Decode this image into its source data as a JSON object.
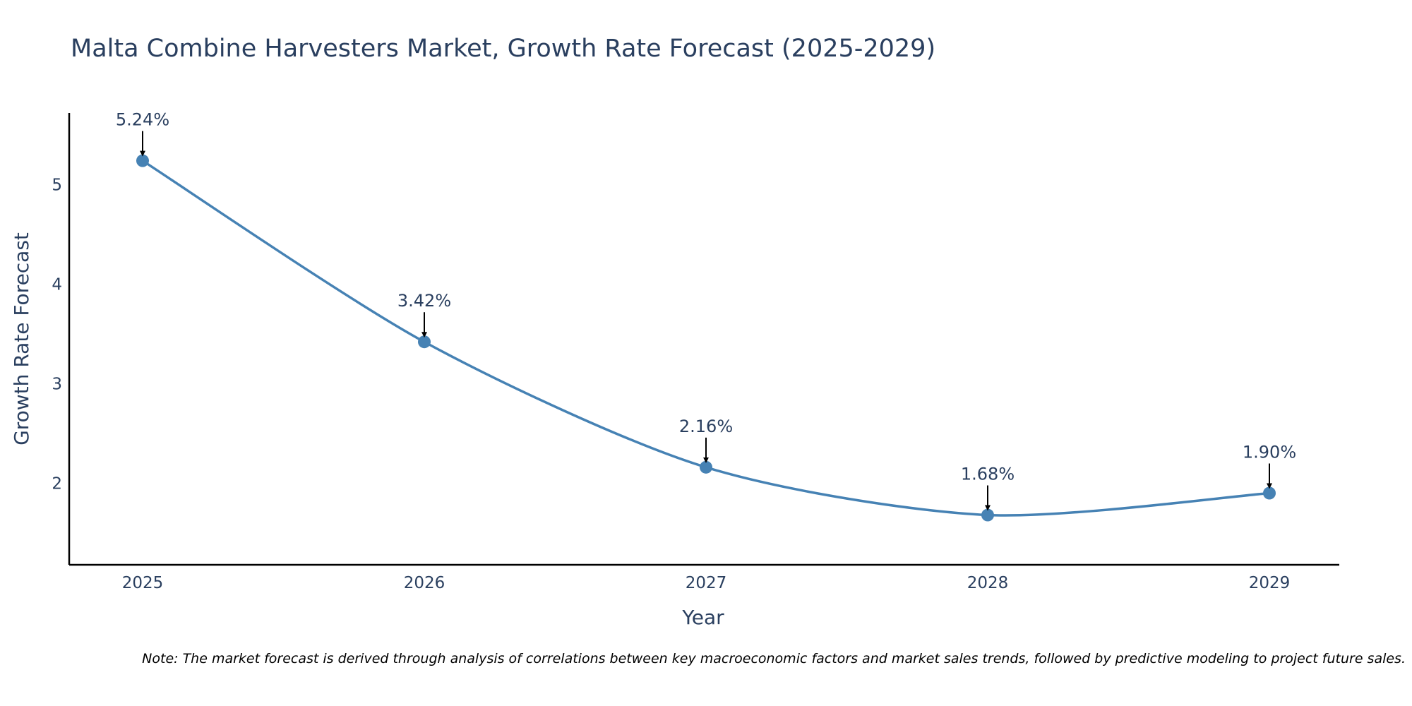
{
  "chart_data": {
    "type": "line",
    "title": "Malta Combine Harvesters Market, Growth Rate Forecast (2025-2029)",
    "xlabel": "Year",
    "ylabel": "Growth Rate Forecast",
    "categories": [
      "2025",
      "2026",
      "2027",
      "2028",
      "2029"
    ],
    "values": [
      5.24,
      3.42,
      2.16,
      1.68,
      1.9
    ],
    "labels": [
      "5.24%",
      "3.42%",
      "2.16%",
      "1.68%",
      "1.90%"
    ],
    "yticks": [
      2,
      3,
      4,
      5
    ],
    "ylim": [
      1.18,
      5.72
    ],
    "grid": false,
    "line_color": "#4682b4",
    "note": "Note: The market forecast is derived through analysis of correlations between key macroeconomic factors and market sales trends, followed by predictive modeling to project future sales."
  }
}
